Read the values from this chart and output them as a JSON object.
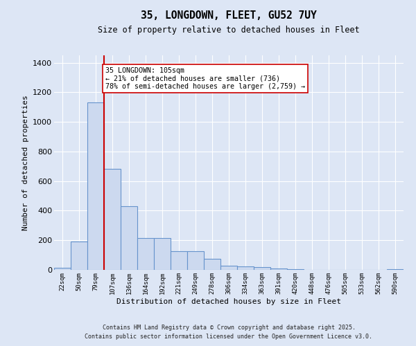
{
  "title1": "35, LONGDOWN, FLEET, GU52 7UY",
  "title2": "Size of property relative to detached houses in Fleet",
  "xlabel": "Distribution of detached houses by size in Fleet",
  "ylabel": "Number of detached properties",
  "categories": [
    "22sqm",
    "50sqm",
    "79sqm",
    "107sqm",
    "136sqm",
    "164sqm",
    "192sqm",
    "221sqm",
    "249sqm",
    "278sqm",
    "306sqm",
    "334sqm",
    "363sqm",
    "391sqm",
    "420sqm",
    "448sqm",
    "476sqm",
    "505sqm",
    "533sqm",
    "562sqm",
    "590sqm"
  ],
  "values": [
    15,
    190,
    1130,
    685,
    430,
    215,
    215,
    128,
    128,
    75,
    28,
    22,
    20,
    10,
    7,
    0,
    0,
    0,
    0,
    0,
    7
  ],
  "bar_color": "#ccd9ef",
  "bar_edge_color": "#6693cc",
  "vline_color": "#cc0000",
  "annotation_text": "35 LONGDOWN: 105sqm\n← 21% of detached houses are smaller (736)\n78% of semi-detached houses are larger (2,759) →",
  "annotation_box_color": "#ffffff",
  "annotation_box_edge": "#cc0000",
  "bg_color": "#dde6f5",
  "grid_color": "#ffffff",
  "footer1": "Contains HM Land Registry data © Crown copyright and database right 2025.",
  "footer2": "Contains public sector information licensed under the Open Government Licence v3.0.",
  "ylim": [
    0,
    1450
  ],
  "yticks": [
    0,
    200,
    400,
    600,
    800,
    1000,
    1200,
    1400
  ]
}
